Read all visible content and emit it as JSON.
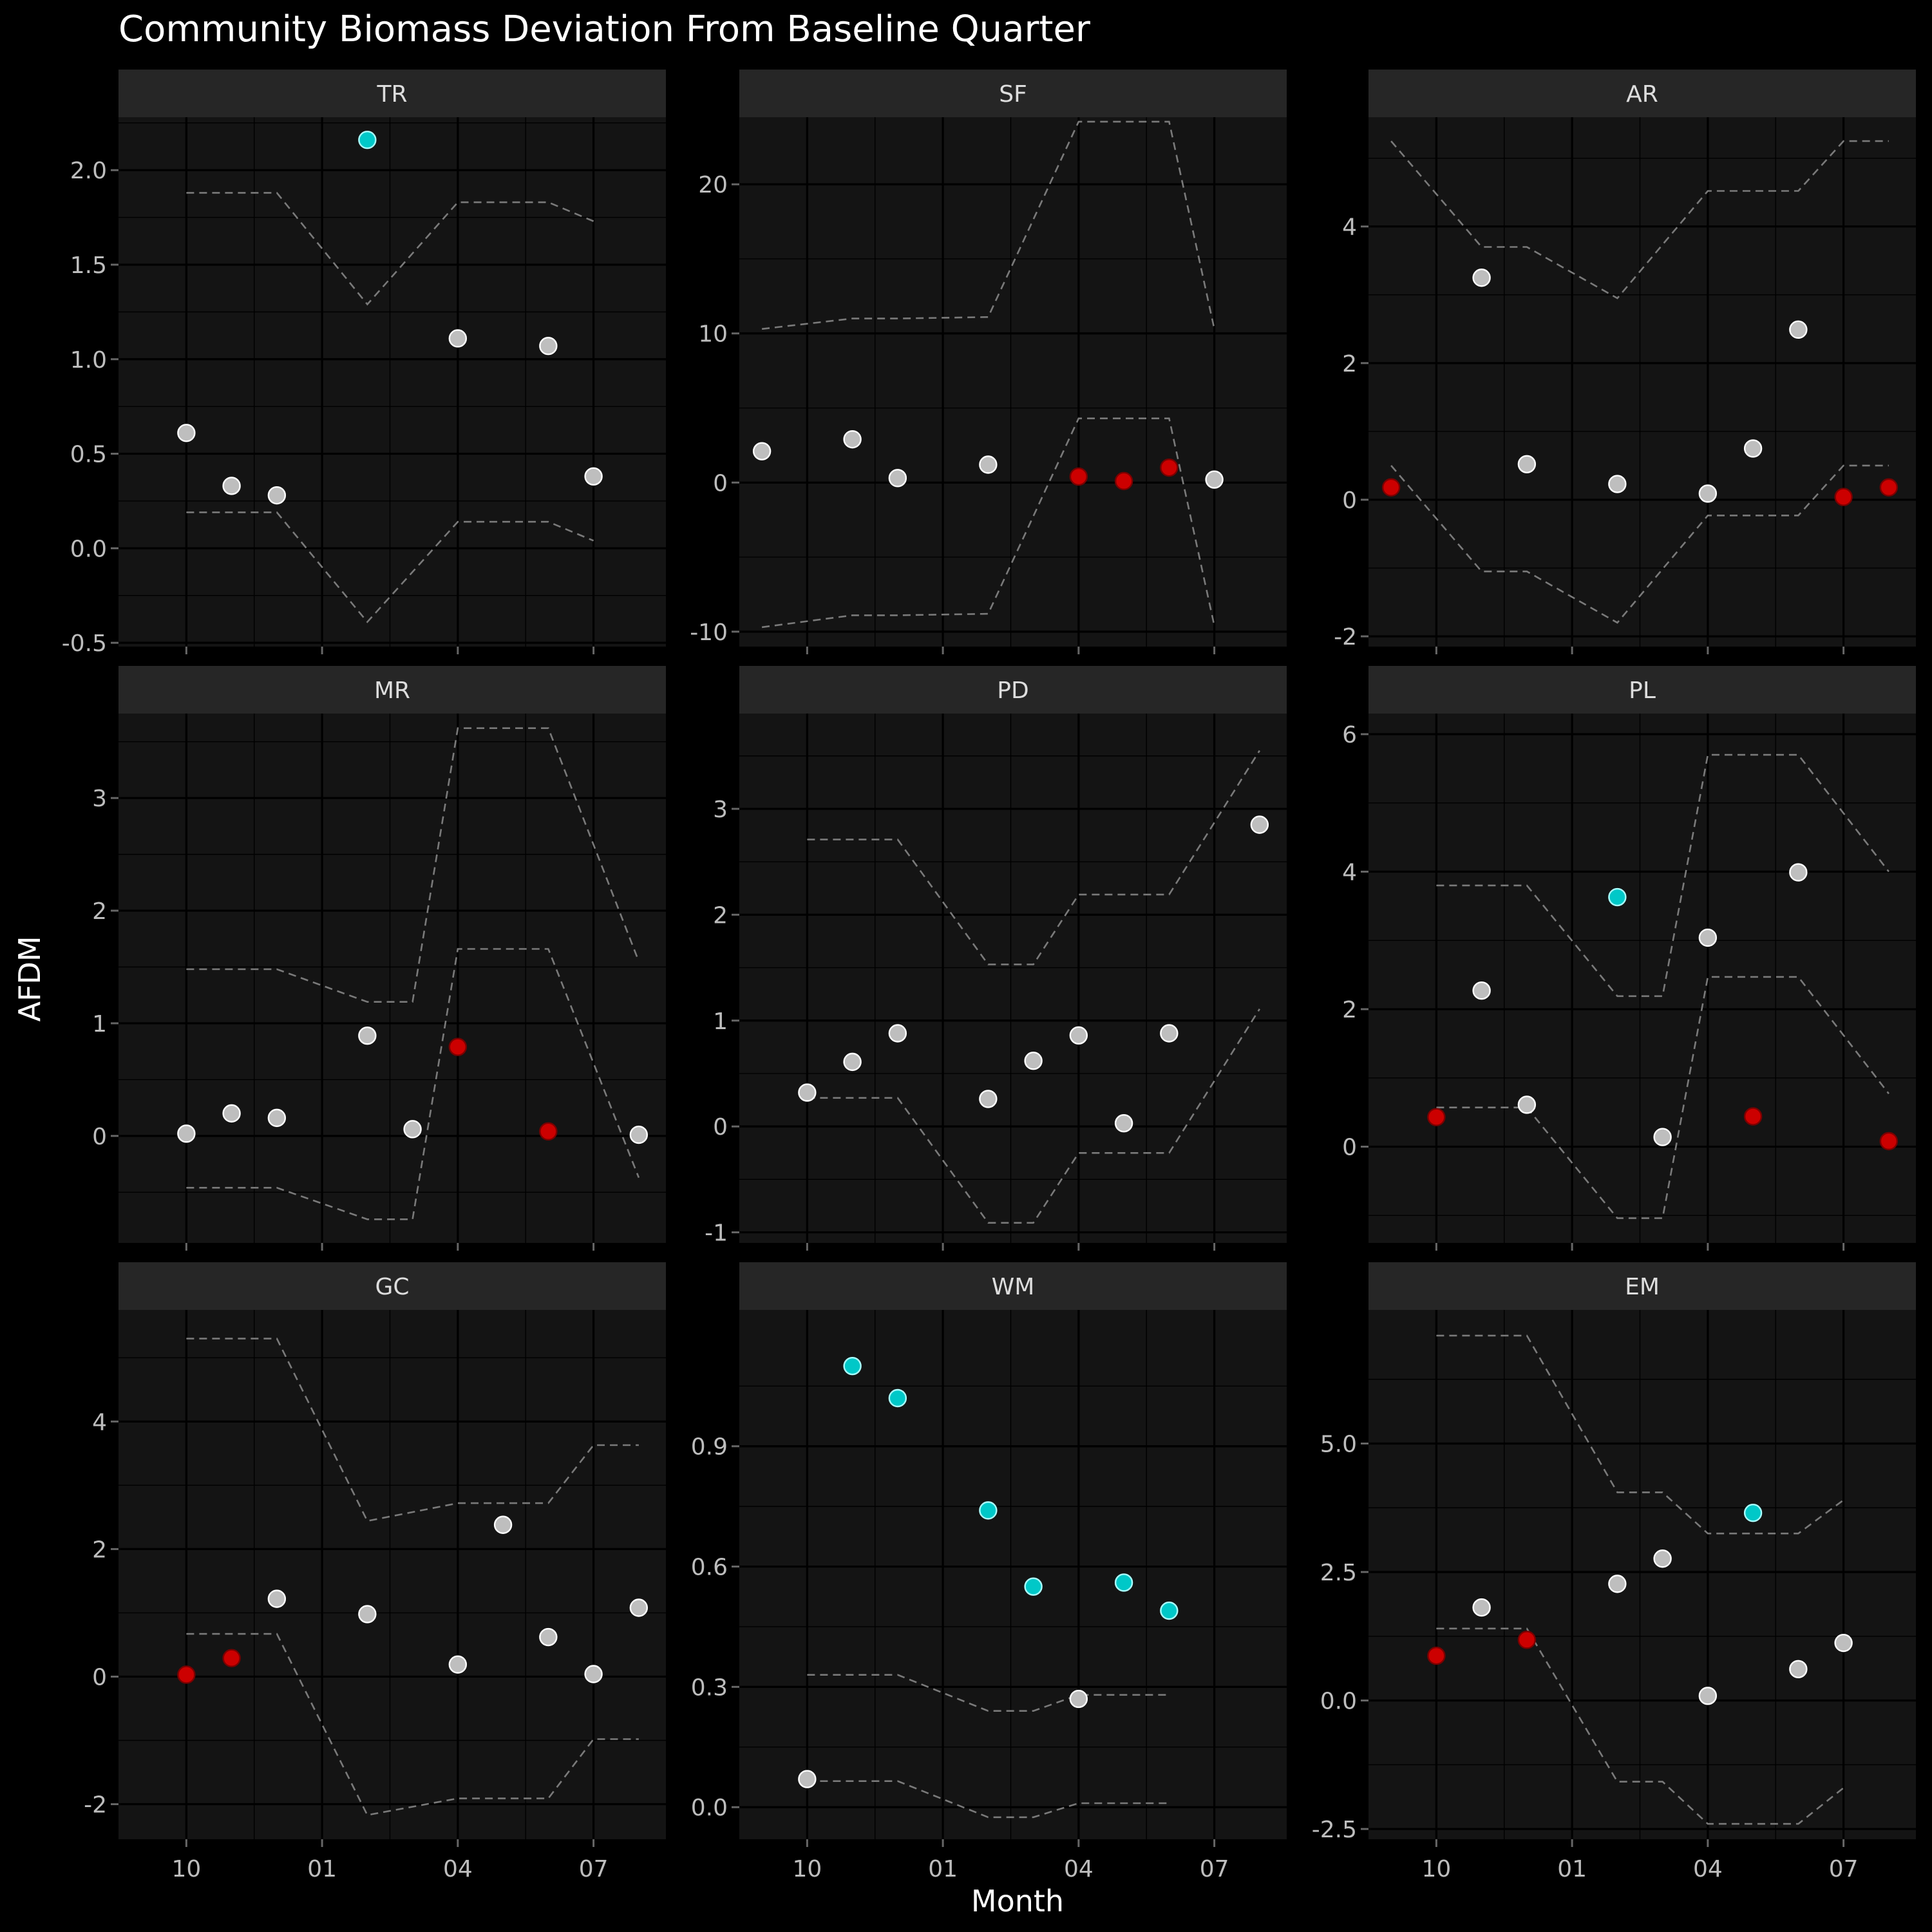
{
  "chart_data": {
    "type": "scatter",
    "title": "Community Biomass Deviation From Baseline Quarter",
    "xlabel": "Month",
    "ylabel": "AFDM",
    "x_tick_labels": [
      "10",
      "01",
      "04",
      "07"
    ],
    "x_tick_months": [
      10,
      13,
      16,
      19
    ],
    "x_range_months": [
      8.5,
      20.6
    ],
    "colors": {
      "normal": "#bebebe",
      "below": "#cc0000",
      "above": "#00c8c8",
      "band": "#7a7a7a"
    },
    "facets": [
      {
        "name": "TR",
        "ylim": [
          -0.52,
          2.28
        ],
        "yticks": [
          -0.5,
          0.0,
          0.5,
          1.0,
          1.5,
          2.0
        ],
        "ytick_labels": [
          "-0.5",
          "0.0",
          "0.5",
          "1.0",
          "1.5",
          "2.0"
        ],
        "points": [
          {
            "m": 10,
            "y": 0.61,
            "c": "normal"
          },
          {
            "m": 11,
            "y": 0.33,
            "c": "normal"
          },
          {
            "m": 12,
            "y": 0.28,
            "c": "normal"
          },
          {
            "m": 14,
            "y": 2.16,
            "c": "above"
          },
          {
            "m": 16,
            "y": 1.11,
            "c": "normal"
          },
          {
            "m": 18,
            "y": 1.07,
            "c": "normal"
          },
          {
            "m": 19,
            "y": 0.38,
            "c": "normal"
          }
        ],
        "upper": [
          {
            "m": 10,
            "y": 1.88
          },
          {
            "m": 12,
            "y": 1.88
          },
          {
            "m": 14,
            "y": 1.29
          },
          {
            "m": 16,
            "y": 1.83
          },
          {
            "m": 18,
            "y": 1.83
          },
          {
            "m": 19,
            "y": 1.73
          }
        ],
        "lower": [
          {
            "m": 10,
            "y": 0.19
          },
          {
            "m": 12,
            "y": 0.19
          },
          {
            "m": 14,
            "y": -0.39
          },
          {
            "m": 16,
            "y": 0.14
          },
          {
            "m": 18,
            "y": 0.14
          },
          {
            "m": 19,
            "y": 0.04
          }
        ]
      },
      {
        "name": "SF",
        "ylim": [
          -11,
          24.5
        ],
        "yticks": [
          -10,
          0,
          10,
          20
        ],
        "ytick_labels": [
          "-10",
          "0",
          "10",
          "20"
        ],
        "points": [
          {
            "m": 9,
            "y": 2.1,
            "c": "normal"
          },
          {
            "m": 11,
            "y": 2.9,
            "c": "normal"
          },
          {
            "m": 12,
            "y": 0.3,
            "c": "normal"
          },
          {
            "m": 14,
            "y": 1.2,
            "c": "normal"
          },
          {
            "m": 16,
            "y": 0.4,
            "c": "below"
          },
          {
            "m": 17,
            "y": 0.1,
            "c": "below"
          },
          {
            "m": 18,
            "y": 1.0,
            "c": "below"
          },
          {
            "m": 19,
            "y": 0.2,
            "c": "normal"
          }
        ],
        "upper": [
          {
            "m": 9,
            "y": 10.3
          },
          {
            "m": 11,
            "y": 11.0
          },
          {
            "m": 12,
            "y": 11.0
          },
          {
            "m": 14,
            "y": 11.1
          },
          {
            "m": 16,
            "y": 24.2
          },
          {
            "m": 18,
            "y": 24.2
          },
          {
            "m": 19,
            "y": 10.3
          }
        ],
        "lower": [
          {
            "m": 9,
            "y": -9.7
          },
          {
            "m": 11,
            "y": -8.9
          },
          {
            "m": 12,
            "y": -8.9
          },
          {
            "m": 14,
            "y": -8.8
          },
          {
            "m": 16,
            "y": 4.3
          },
          {
            "m": 18,
            "y": 4.3
          },
          {
            "m": 19,
            "y": -9.6
          }
        ]
      },
      {
        "name": "AR",
        "ylim": [
          -2.15,
          5.6
        ],
        "yticks": [
          -2,
          0,
          2,
          4
        ],
        "ytick_labels": [
          "-2",
          "0",
          "2",
          "4"
        ],
        "points": [
          {
            "m": 9,
            "y": 0.18,
            "c": "below"
          },
          {
            "m": 11,
            "y": 3.25,
            "c": "normal"
          },
          {
            "m": 12,
            "y": 0.52,
            "c": "normal"
          },
          {
            "m": 14,
            "y": 0.23,
            "c": "normal"
          },
          {
            "m": 16,
            "y": 0.09,
            "c": "normal"
          },
          {
            "m": 17,
            "y": 0.75,
            "c": "normal"
          },
          {
            "m": 18,
            "y": 2.49,
            "c": "normal"
          },
          {
            "m": 19,
            "y": 0.04,
            "c": "below"
          },
          {
            "m": 20,
            "y": 0.18,
            "c": "below"
          }
        ],
        "upper": [
          {
            "m": 9,
            "y": 5.25
          },
          {
            "m": 11,
            "y": 3.7
          },
          {
            "m": 12,
            "y": 3.7
          },
          {
            "m": 14,
            "y": 2.95
          },
          {
            "m": 16,
            "y": 4.52
          },
          {
            "m": 18,
            "y": 4.52
          },
          {
            "m": 19,
            "y": 5.25
          },
          {
            "m": 20,
            "y": 5.25
          }
        ],
        "lower": [
          {
            "m": 9,
            "y": 0.5
          },
          {
            "m": 11,
            "y": -1.05
          },
          {
            "m": 12,
            "y": -1.05
          },
          {
            "m": 14,
            "y": -1.8
          },
          {
            "m": 16,
            "y": -0.23
          },
          {
            "m": 18,
            "y": -0.23
          },
          {
            "m": 19,
            "y": 0.5
          },
          {
            "m": 20,
            "y": 0.5
          }
        ]
      },
      {
        "name": "MR",
        "ylim": [
          -0.95,
          3.75
        ],
        "yticks": [
          0,
          1,
          2,
          3
        ],
        "ytick_labels": [
          "0",
          "1",
          "2",
          "3"
        ],
        "points": [
          {
            "m": 10,
            "y": 0.02,
            "c": "normal"
          },
          {
            "m": 11,
            "y": 0.2,
            "c": "normal"
          },
          {
            "m": 12,
            "y": 0.16,
            "c": "normal"
          },
          {
            "m": 14,
            "y": 0.89,
            "c": "normal"
          },
          {
            "m": 15,
            "y": 0.06,
            "c": "normal"
          },
          {
            "m": 16,
            "y": 0.79,
            "c": "below"
          },
          {
            "m": 18,
            "y": 0.04,
            "c": "below"
          },
          {
            "m": 20,
            "y": 0.01,
            "c": "normal"
          }
        ],
        "upper": [
          {
            "m": 10,
            "y": 1.48
          },
          {
            "m": 12,
            "y": 1.48
          },
          {
            "m": 14,
            "y": 1.19
          },
          {
            "m": 15,
            "y": 1.19
          },
          {
            "m": 16,
            "y": 3.62
          },
          {
            "m": 18,
            "y": 3.62
          },
          {
            "m": 20,
            "y": 1.55
          }
        ],
        "lower": [
          {
            "m": 10,
            "y": -0.46
          },
          {
            "m": 12,
            "y": -0.46
          },
          {
            "m": 14,
            "y": -0.74
          },
          {
            "m": 15,
            "y": -0.74
          },
          {
            "m": 16,
            "y": 1.66
          },
          {
            "m": 18,
            "y": 1.66
          },
          {
            "m": 20,
            "y": -0.37
          }
        ]
      },
      {
        "name": "PD",
        "ylim": [
          -1.1,
          3.9
        ],
        "yticks": [
          -1,
          0,
          1,
          2,
          3
        ],
        "ytick_labels": [
          "-1",
          "0",
          "1",
          "2",
          "3"
        ],
        "points": [
          {
            "m": 10,
            "y": 0.32,
            "c": "normal"
          },
          {
            "m": 11,
            "y": 0.61,
            "c": "normal"
          },
          {
            "m": 12,
            "y": 0.88,
            "c": "normal"
          },
          {
            "m": 14,
            "y": 0.26,
            "c": "normal"
          },
          {
            "m": 15,
            "y": 0.62,
            "c": "normal"
          },
          {
            "m": 16,
            "y": 0.86,
            "c": "normal"
          },
          {
            "m": 17,
            "y": 0.03,
            "c": "normal"
          },
          {
            "m": 18,
            "y": 0.88,
            "c": "normal"
          },
          {
            "m": 20,
            "y": 2.85,
            "c": "normal"
          }
        ],
        "upper": [
          {
            "m": 10,
            "y": 2.71
          },
          {
            "m": 12,
            "y": 2.71
          },
          {
            "m": 14,
            "y": 1.53
          },
          {
            "m": 15,
            "y": 1.53
          },
          {
            "m": 16,
            "y": 2.19
          },
          {
            "m": 18,
            "y": 2.19
          },
          {
            "m": 20,
            "y": 3.55
          }
        ],
        "lower": [
          {
            "m": 10,
            "y": 0.27
          },
          {
            "m": 12,
            "y": 0.27
          },
          {
            "m": 14,
            "y": -0.91
          },
          {
            "m": 15,
            "y": -0.91
          },
          {
            "m": 16,
            "y": -0.25
          },
          {
            "m": 18,
            "y": -0.25
          },
          {
            "m": 20,
            "y": 1.11
          }
        ]
      },
      {
        "name": "PL",
        "ylim": [
          -1.4,
          6.3
        ],
        "yticks": [
          0,
          2,
          4,
          6
        ],
        "ytick_labels": [
          "0",
          "2",
          "4",
          "6"
        ],
        "points": [
          {
            "m": 10,
            "y": 0.43,
            "c": "below"
          },
          {
            "m": 11,
            "y": 2.27,
            "c": "normal"
          },
          {
            "m": 12,
            "y": 0.61,
            "c": "normal"
          },
          {
            "m": 14,
            "y": 3.63,
            "c": "above"
          },
          {
            "m": 15,
            "y": 0.14,
            "c": "normal"
          },
          {
            "m": 16,
            "y": 3.04,
            "c": "normal"
          },
          {
            "m": 17,
            "y": 0.44,
            "c": "below"
          },
          {
            "m": 18,
            "y": 3.99,
            "c": "normal"
          },
          {
            "m": 20,
            "y": 0.08,
            "c": "below"
          }
        ],
        "upper": [
          {
            "m": 10,
            "y": 3.8
          },
          {
            "m": 12,
            "y": 3.8
          },
          {
            "m": 14,
            "y": 2.19
          },
          {
            "m": 15,
            "y": 2.19
          },
          {
            "m": 16,
            "y": 5.7
          },
          {
            "m": 18,
            "y": 5.7
          },
          {
            "m": 20,
            "y": 4.0
          }
        ],
        "lower": [
          {
            "m": 10,
            "y": 0.57
          },
          {
            "m": 12,
            "y": 0.57
          },
          {
            "m": 14,
            "y": -1.04
          },
          {
            "m": 15,
            "y": -1.04
          },
          {
            "m": 16,
            "y": 2.47
          },
          {
            "m": 18,
            "y": 2.47
          },
          {
            "m": 20,
            "y": 0.77
          }
        ]
      },
      {
        "name": "GC",
        "ylim": [
          -2.55,
          5.75
        ],
        "yticks": [
          -2,
          0,
          2,
          4
        ],
        "ytick_labels": [
          "-2",
          "0",
          "2",
          "4"
        ],
        "points": [
          {
            "m": 10,
            "y": 0.03,
            "c": "below"
          },
          {
            "m": 11,
            "y": 0.29,
            "c": "below"
          },
          {
            "m": 12,
            "y": 1.22,
            "c": "normal"
          },
          {
            "m": 14,
            "y": 0.98,
            "c": "normal"
          },
          {
            "m": 16,
            "y": 0.19,
            "c": "normal"
          },
          {
            "m": 17,
            "y": 2.38,
            "c": "normal"
          },
          {
            "m": 18,
            "y": 0.62,
            "c": "normal"
          },
          {
            "m": 19,
            "y": 0.04,
            "c": "normal"
          },
          {
            "m": 20,
            "y": 1.08,
            "c": "normal"
          }
        ],
        "upper": [
          {
            "m": 10,
            "y": 5.3
          },
          {
            "m": 12,
            "y": 5.3
          },
          {
            "m": 14,
            "y": 2.44
          },
          {
            "m": 16,
            "y": 2.72
          },
          {
            "m": 18,
            "y": 2.72
          },
          {
            "m": 19,
            "y": 3.63
          },
          {
            "m": 20,
            "y": 3.63
          }
        ],
        "lower": [
          {
            "m": 10,
            "y": 0.67
          },
          {
            "m": 12,
            "y": 0.67
          },
          {
            "m": 14,
            "y": -2.17
          },
          {
            "m": 16,
            "y": -1.91
          },
          {
            "m": 18,
            "y": -1.91
          },
          {
            "m": 19,
            "y": -0.98
          },
          {
            "m": 20,
            "y": -0.98
          }
        ]
      },
      {
        "name": "WM",
        "ylim": [
          -0.08,
          1.24
        ],
        "yticks": [
          0.0,
          0.3,
          0.6,
          0.9
        ],
        "ytick_labels": [
          "0.0",
          "0.3",
          "0.6",
          "0.9"
        ],
        "points": [
          {
            "m": 10,
            "y": 0.07,
            "c": "normal"
          },
          {
            "m": 11,
            "y": 1.1,
            "c": "above"
          },
          {
            "m": 12,
            "y": 1.02,
            "c": "above"
          },
          {
            "m": 14,
            "y": 0.74,
            "c": "above"
          },
          {
            "m": 15,
            "y": 0.55,
            "c": "above"
          },
          {
            "m": 16,
            "y": 0.27,
            "c": "normal"
          },
          {
            "m": 17,
            "y": 0.56,
            "c": "above"
          },
          {
            "m": 18,
            "y": 0.49,
            "c": "above"
          }
        ],
        "upper": [
          {
            "m": 10,
            "y": 0.33
          },
          {
            "m": 12,
            "y": 0.33
          },
          {
            "m": 14,
            "y": 0.24
          },
          {
            "m": 15,
            "y": 0.24
          },
          {
            "m": 16,
            "y": 0.28
          },
          {
            "m": 18,
            "y": 0.28
          }
        ],
        "lower": [
          {
            "m": 10,
            "y": 0.065
          },
          {
            "m": 12,
            "y": 0.065
          },
          {
            "m": 14,
            "y": -0.025
          },
          {
            "m": 15,
            "y": -0.025
          },
          {
            "m": 16,
            "y": 0.01
          },
          {
            "m": 18,
            "y": 0.01
          }
        ]
      },
      {
        "name": "EM",
        "ylim": [
          -2.7,
          7.6
        ],
        "yticks": [
          -2.5,
          0.0,
          2.5,
          5.0
        ],
        "ytick_labels": [
          "-2.5",
          "0.0",
          "2.5",
          "5.0"
        ],
        "points": [
          {
            "m": 10,
            "y": 0.87,
            "c": "below"
          },
          {
            "m": 11,
            "y": 1.81,
            "c": "normal"
          },
          {
            "m": 12,
            "y": 1.18,
            "c": "below"
          },
          {
            "m": 14,
            "y": 2.27,
            "c": "normal"
          },
          {
            "m": 15,
            "y": 2.76,
            "c": "normal"
          },
          {
            "m": 16,
            "y": 0.09,
            "c": "normal"
          },
          {
            "m": 17,
            "y": 3.65,
            "c": "above"
          },
          {
            "m": 18,
            "y": 0.61,
            "c": "normal"
          },
          {
            "m": 19,
            "y": 1.12,
            "c": "normal"
          }
        ],
        "upper": [
          {
            "m": 10,
            "y": 7.1
          },
          {
            "m": 12,
            "y": 7.1
          },
          {
            "m": 14,
            "y": 4.05
          },
          {
            "m": 15,
            "y": 4.05
          },
          {
            "m": 16,
            "y": 3.25
          },
          {
            "m": 18,
            "y": 3.25
          },
          {
            "m": 19,
            "y": 3.9
          }
        ],
        "lower": [
          {
            "m": 10,
            "y": 1.4
          },
          {
            "m": 12,
            "y": 1.4
          },
          {
            "m": 14,
            "y": -1.58
          },
          {
            "m": 15,
            "y": -1.58
          },
          {
            "m": 16,
            "y": -2.4
          },
          {
            "m": 18,
            "y": -2.4
          },
          {
            "m": 19,
            "y": -1.7
          }
        ]
      }
    ]
  }
}
